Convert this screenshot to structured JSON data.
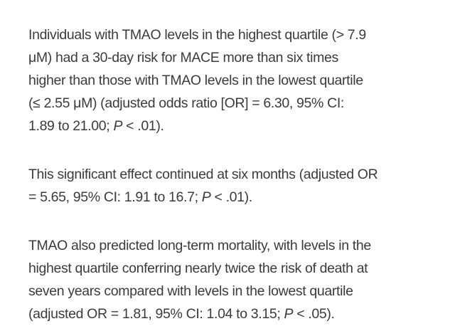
{
  "document": {
    "background": "#ffffff",
    "text_color": "#3b3b3b",
    "paragraphs": [
      {
        "lines": [
          [
            {
              "t": "Individuals with TMAO levels in the highest quartile (> 7.9"
            }
          ],
          [
            {
              "t": "μM) had a 30-day risk for MACE more than six times"
            }
          ],
          [
            {
              "t": "higher than those with TMAO levels in the lowest quartile"
            }
          ],
          [
            {
              "t": "(≤ 2.55 μM) (adjusted odds ratio [OR] = 6.30, 95% CI:"
            }
          ],
          [
            {
              "t": "1.89 to 21.00; "
            },
            {
              "t": "P",
              "i": true
            },
            {
              "t": " < .01)."
            }
          ]
        ]
      },
      {
        "lines": [
          [
            {
              "t": "This significant effect continued at six months (adjusted OR"
            }
          ],
          [
            {
              "t": "= 5.65, 95% CI: 1.91 to 16.7; "
            },
            {
              "t": "P",
              "i": true
            },
            {
              "t": " < .01)."
            }
          ]
        ]
      },
      {
        "lines": [
          [
            {
              "t": "TMAO also predicted long-term mortality, with levels in the"
            }
          ],
          [
            {
              "t": "highest quartile conferring nearly twice the risk of death at"
            }
          ],
          [
            {
              "t": "seven years compared with levels in the lowest quartile"
            }
          ],
          [
            {
              "t": "(adjusted OR = 1.81, 95% CI: 1.04 to 3.15; "
            },
            {
              "t": "P",
              "i": true
            },
            {
              "t": " < .05)."
            }
          ]
        ]
      }
    ]
  }
}
